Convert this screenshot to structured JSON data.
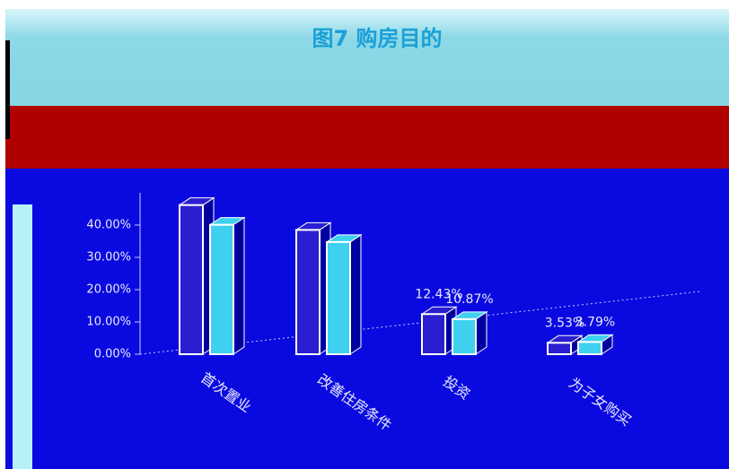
{
  "chart_data": {
    "type": "bar",
    "title": "图7 购房目的",
    "categories": [
      "首次置业",
      "改善住房条件",
      "投资",
      "为子女购买"
    ],
    "series": [
      {
        "color": "#2a1fd0",
        "values": [
          46.2,
          38.5,
          12.43,
          3.53
        ],
        "value_labels": [
          null,
          null,
          "12.43%",
          "3.53%"
        ]
      },
      {
        "color": "#3fd0f0",
        "values": [
          40.1,
          34.75,
          10.87,
          3.79
        ],
        "value_labels": [
          null,
          null,
          "10.87%",
          "3.79%"
        ]
      }
    ],
    "ylim": [
      0,
      50
    ],
    "yticks": [
      {
        "value": 0,
        "label": "0.00%"
      },
      {
        "value": 10,
        "label": "10.00%"
      },
      {
        "value": 20,
        "label": "20.00%"
      },
      {
        "value": 30,
        "label": "30.00%"
      },
      {
        "value": 40,
        "label": "40.00%"
      }
    ],
    "grid": false
  }
}
